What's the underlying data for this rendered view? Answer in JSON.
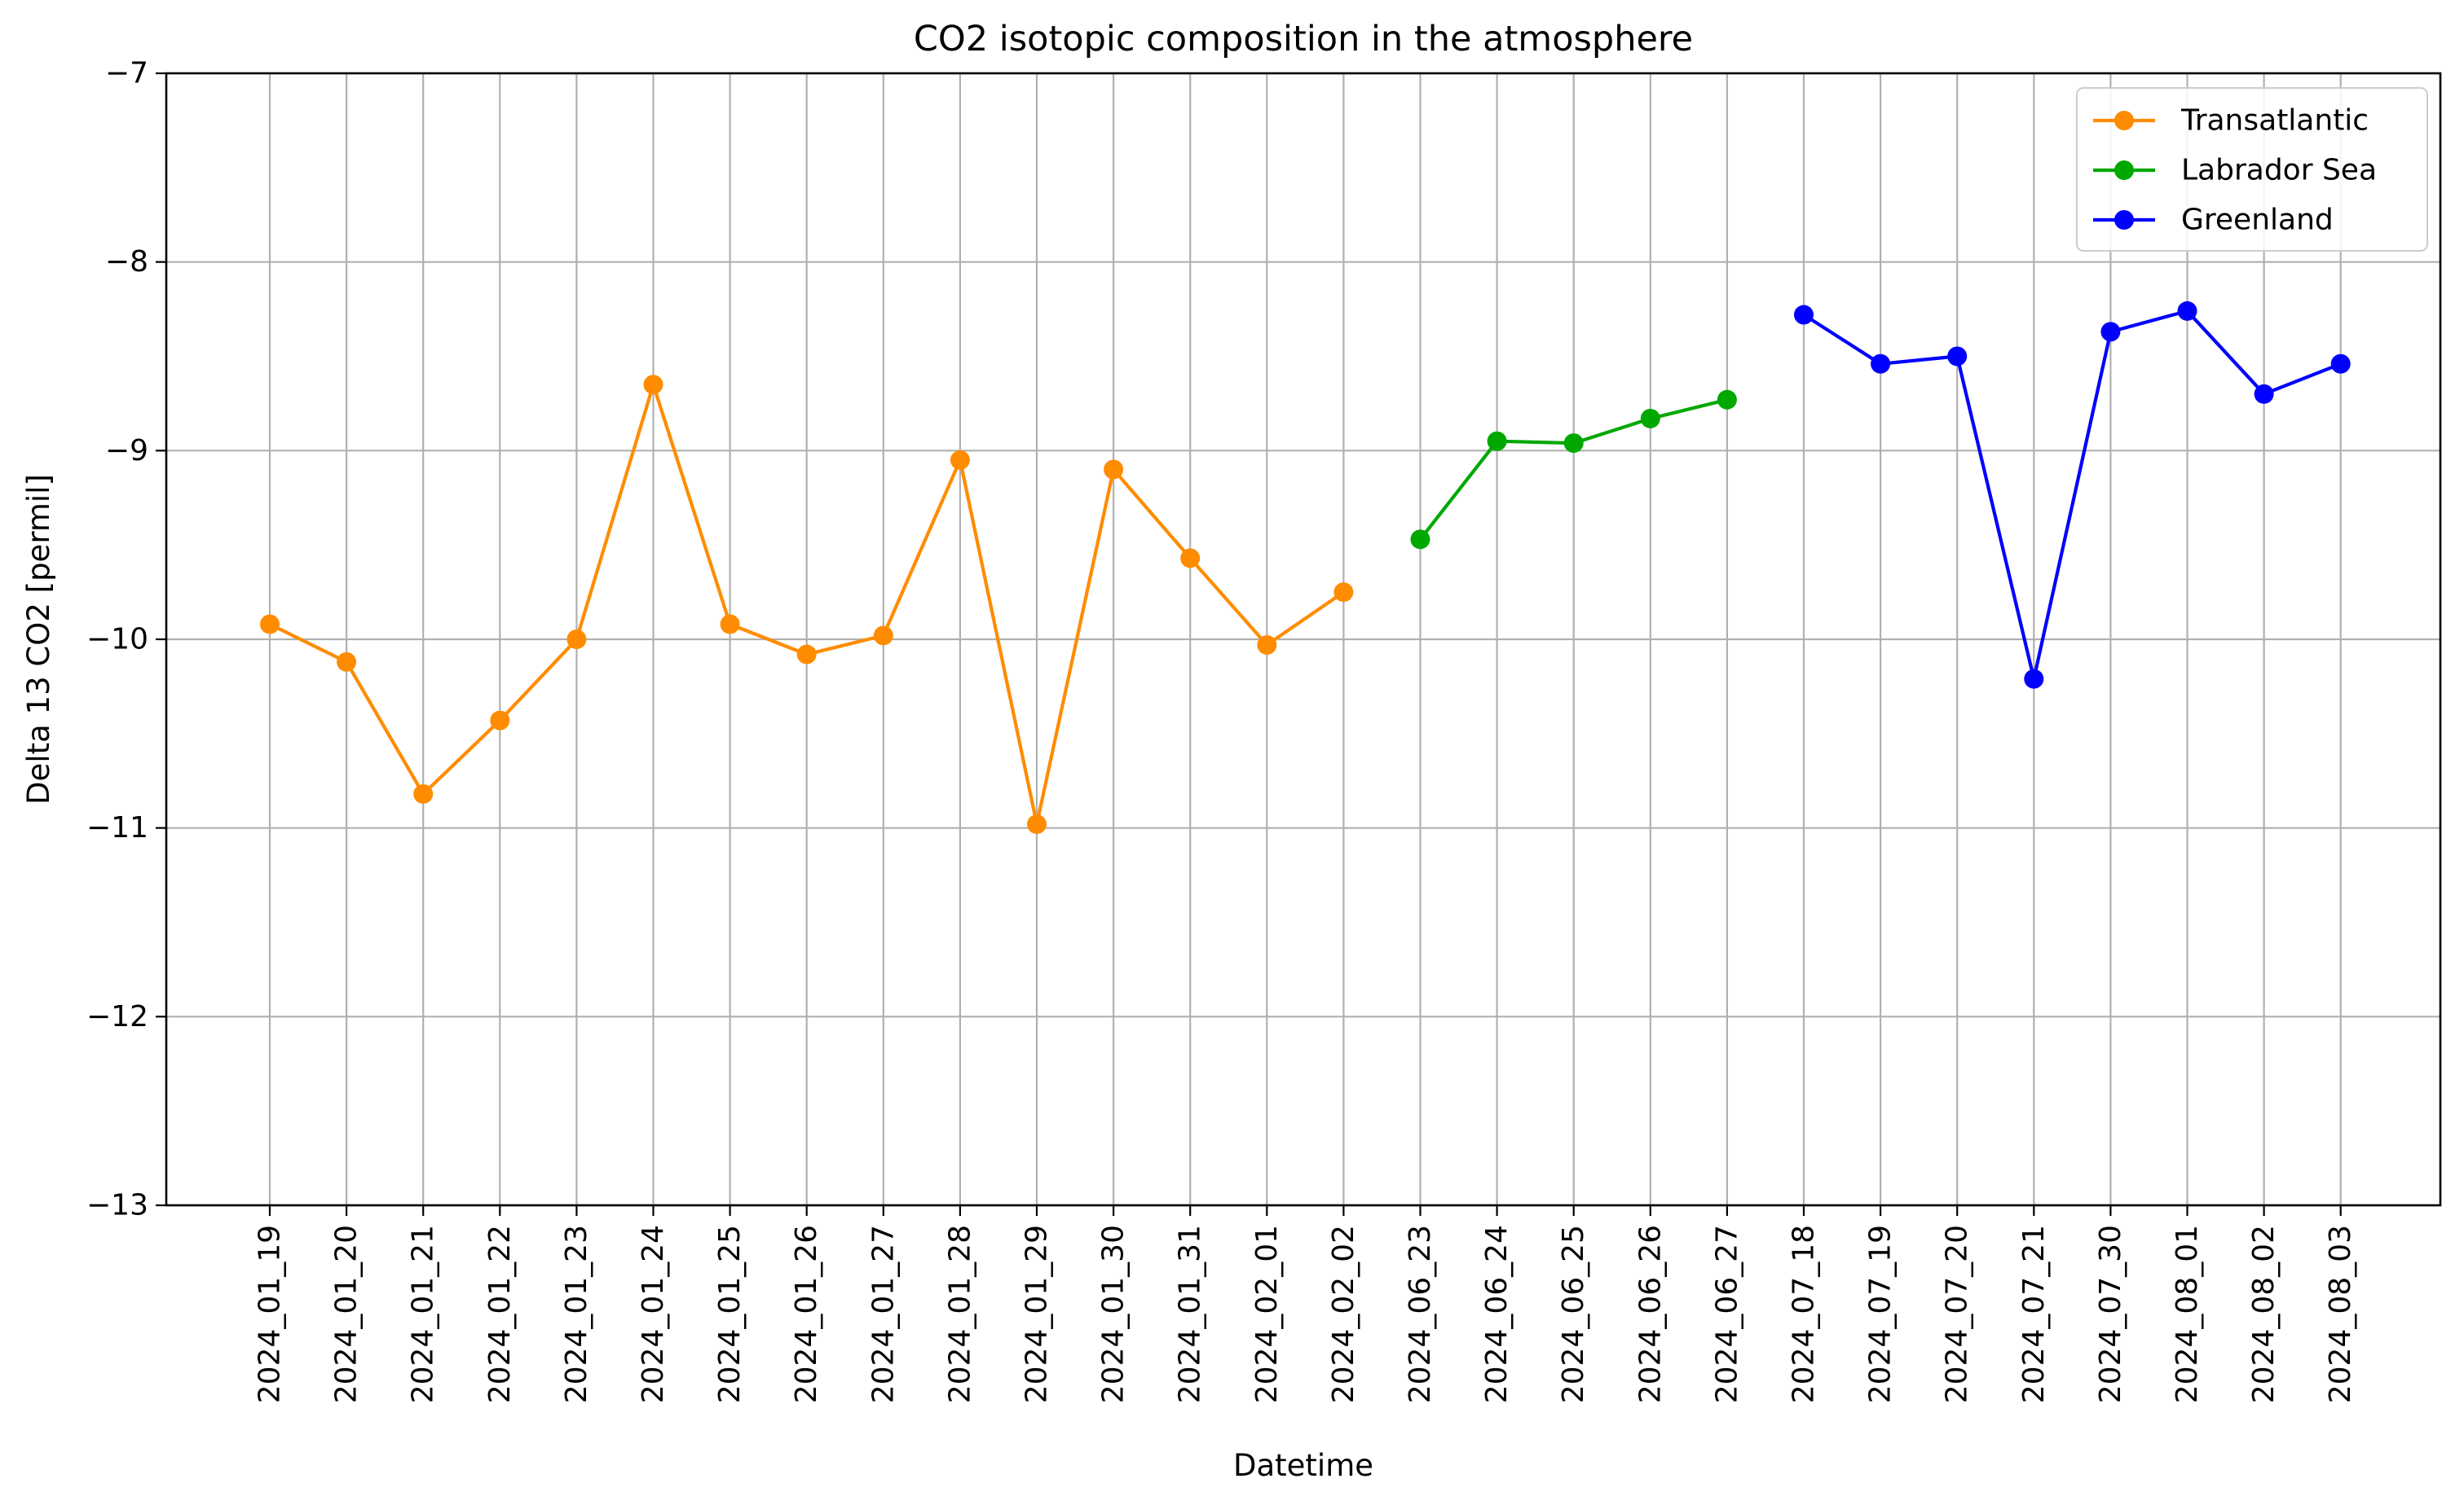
{
  "chart_data": {
    "type": "line",
    "title": "CO2 isotopic composition in the atmosphere",
    "xlabel": "Datetime",
    "ylabel": "Delta 13 CO2 [permil]",
    "ylim": [
      -13,
      -7
    ],
    "yticks": [
      "−7",
      "−8",
      "−9",
      "−10",
      "−11",
      "−12",
      "−13"
    ],
    "ytick_values": [
      -7,
      -8,
      -9,
      -10,
      -11,
      -12,
      -13
    ],
    "grid": true,
    "legend_position": "top-right",
    "categories": [
      "2024_01_19",
      "2024_01_20",
      "2024_01_21",
      "2024_01_22",
      "2024_01_23",
      "2024_01_24",
      "2024_01_25",
      "2024_01_26",
      "2024_01_27",
      "2024_01_28",
      "2024_01_29",
      "2024_01_30",
      "2024_01_31",
      "2024_02_01",
      "2024_02_02",
      "2024_06_23",
      "2024_06_24",
      "2024_06_25",
      "2024_06_26",
      "2024_06_27",
      "2024_07_18",
      "2024_07_19",
      "2024_07_20",
      "2024_07_21",
      "2024_07_30",
      "2024_08_01",
      "2024_08_02",
      "2024_08_03"
    ],
    "series": [
      {
        "name": "Transatlantic",
        "color": "#ff8c00",
        "x": [
          "2024_01_19",
          "2024_01_20",
          "2024_01_21",
          "2024_01_22",
          "2024_01_23",
          "2024_01_24",
          "2024_01_25",
          "2024_01_26",
          "2024_01_27",
          "2024_01_28",
          "2024_01_29",
          "2024_01_30",
          "2024_01_31",
          "2024_02_01",
          "2024_02_02"
        ],
        "values": [
          -9.92,
          -10.12,
          -10.82,
          -10.43,
          -10.0,
          -8.65,
          -9.92,
          -10.08,
          -9.98,
          -9.05,
          -10.98,
          -9.1,
          -9.57,
          -10.03,
          -9.75
        ]
      },
      {
        "name": "Labrador Sea",
        "color": "#00a800",
        "x": [
          "2024_06_23",
          "2024_06_24",
          "2024_06_25",
          "2024_06_26",
          "2024_06_27"
        ],
        "values": [
          -9.47,
          -8.95,
          -8.96,
          -8.83,
          -8.73
        ]
      },
      {
        "name": "Greenland",
        "color": "#0000ff",
        "x": [
          "2024_07_18",
          "2024_07_19",
          "2024_07_20",
          "2024_07_21",
          "2024_07_30",
          "2024_08_01",
          "2024_08_02",
          "2024_08_03"
        ],
        "values": [
          -8.28,
          -8.54,
          -8.5,
          -10.21,
          -8.37,
          -8.26,
          -8.7,
          -8.54
        ]
      }
    ]
  }
}
